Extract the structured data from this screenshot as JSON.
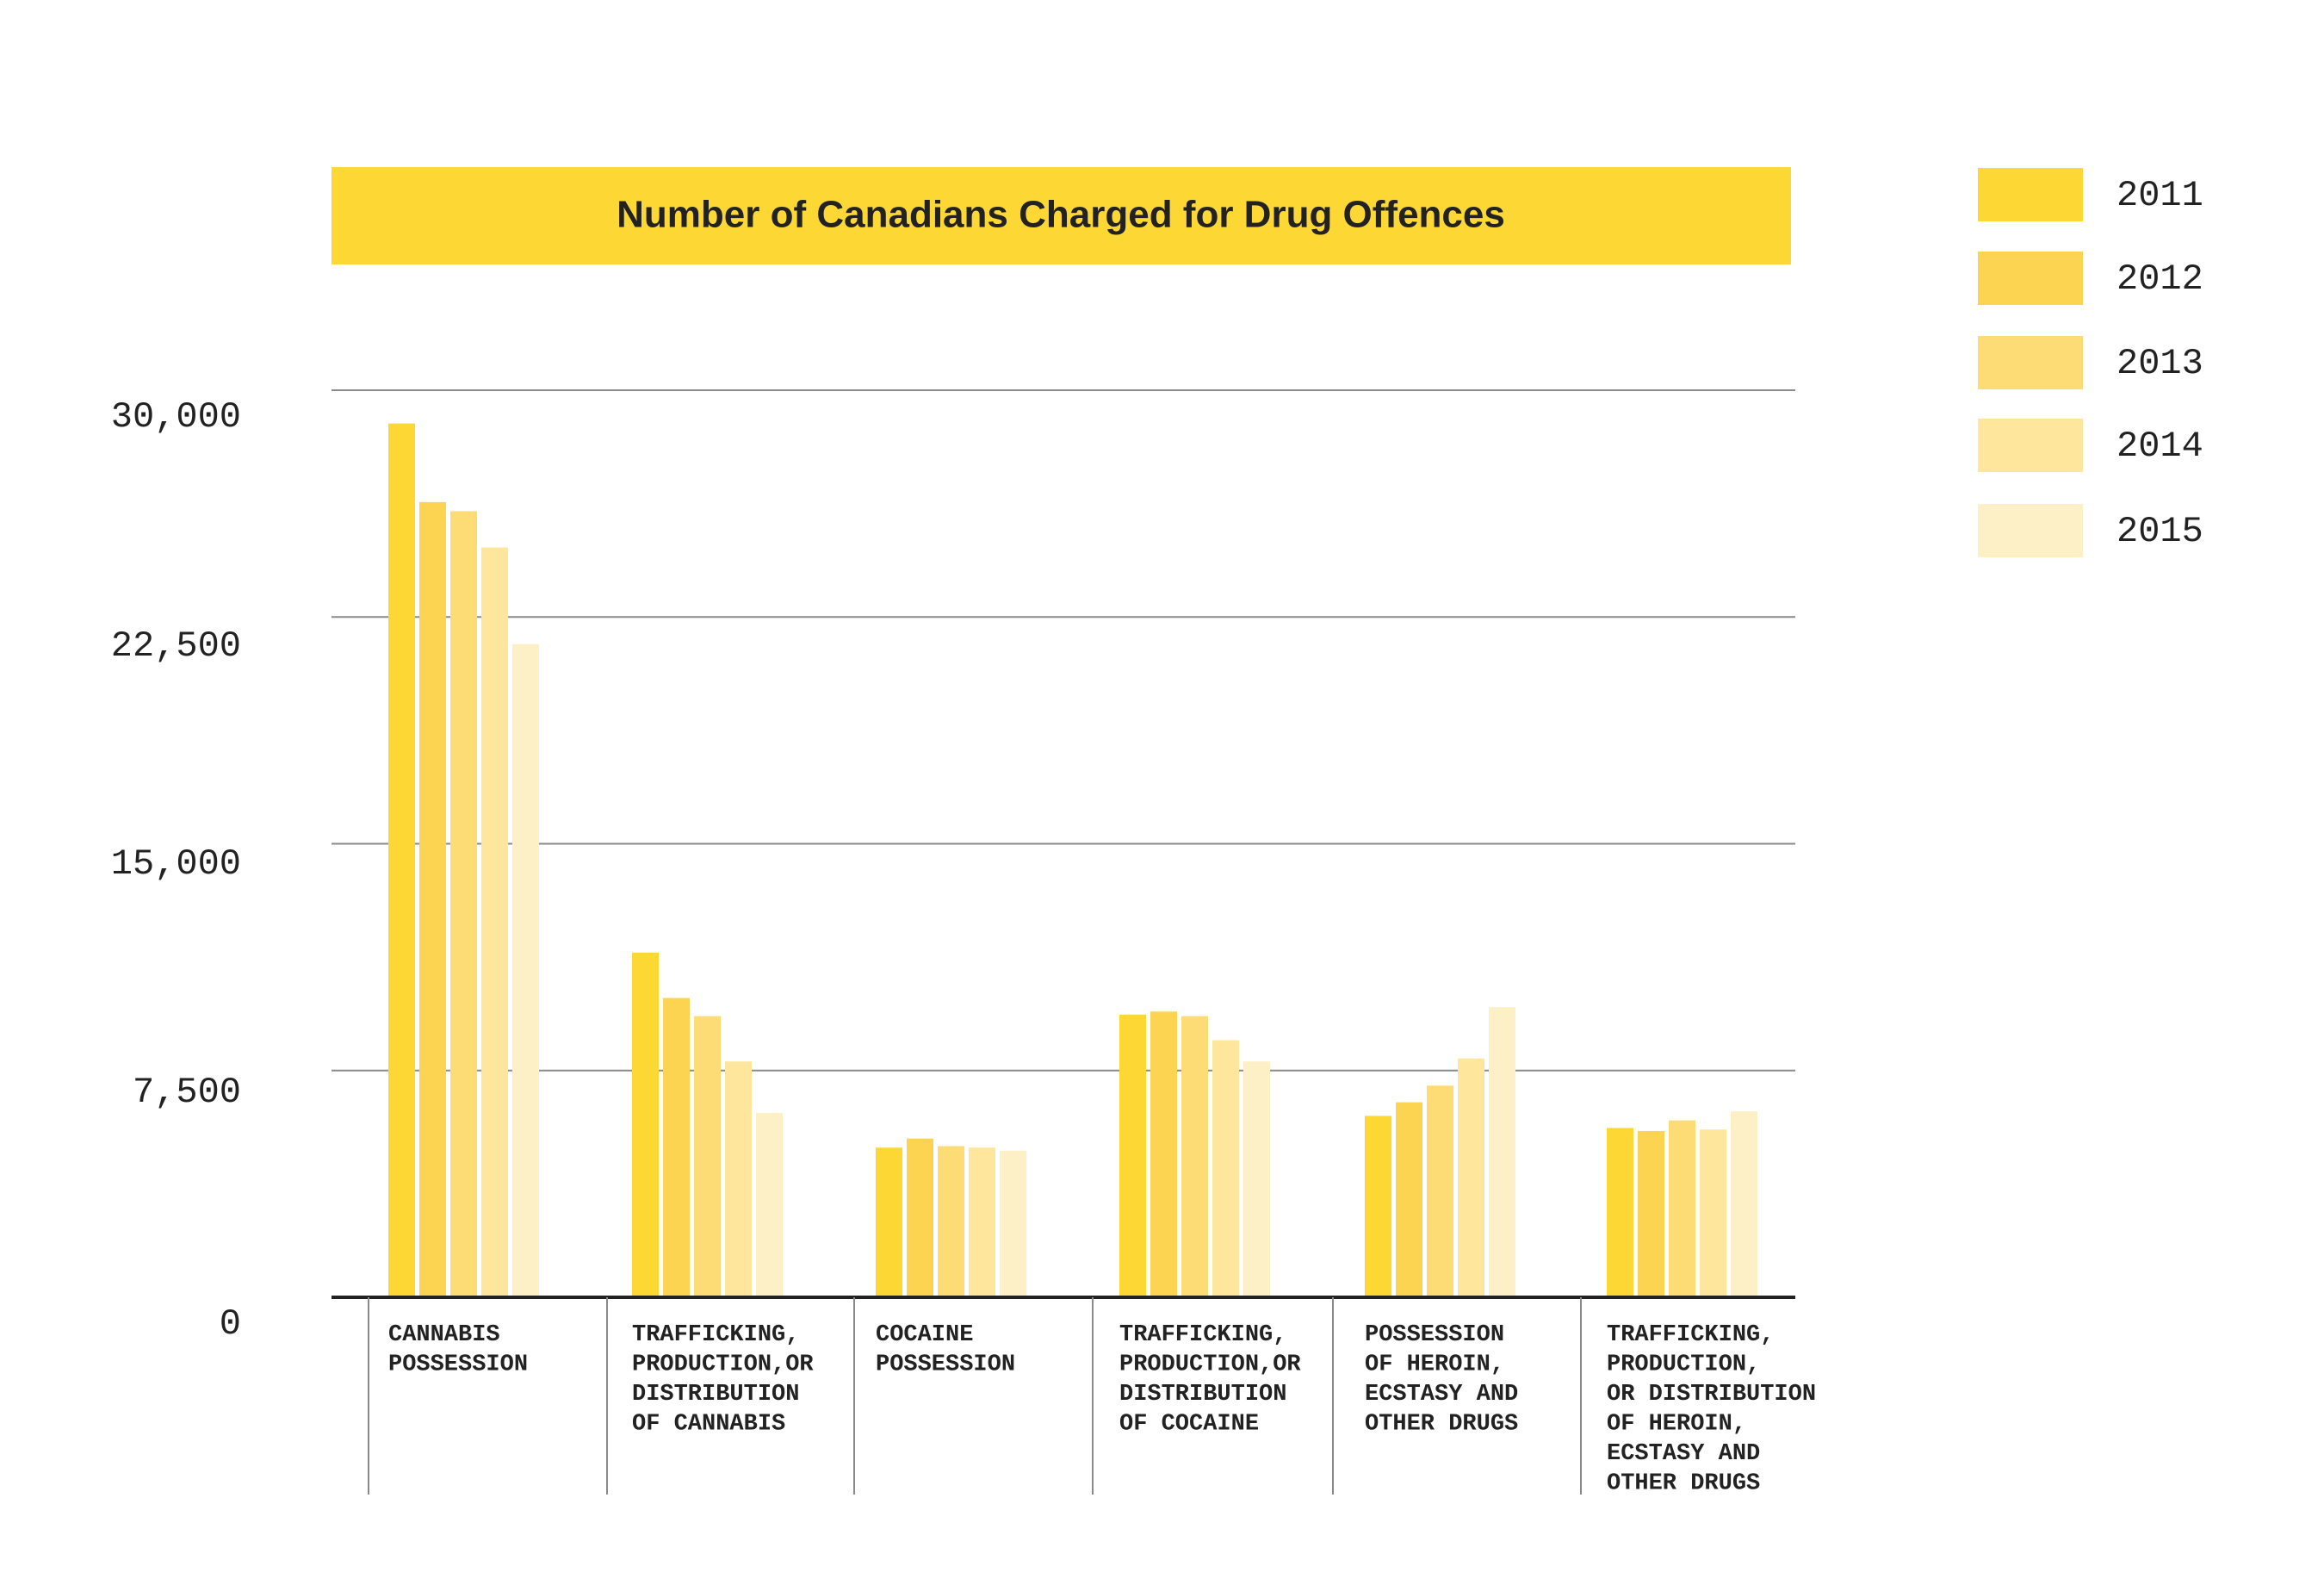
{
  "chart_data": {
    "type": "bar",
    "title": "Number of Canadians Charged for Drug Offences",
    "xlabel": "",
    "ylabel": "",
    "ylim": [
      0,
      30000
    ],
    "yticks": [
      {
        "value": 0,
        "label": "0"
      },
      {
        "value": 7500,
        "label": "7,500"
      },
      {
        "value": 15000,
        "label": "15,000"
      },
      {
        "value": 22500,
        "label": "22,500"
      },
      {
        "value": 30000,
        "label": "30,000"
      }
    ],
    "grid": true,
    "legend_position": "right",
    "categories": [
      {
        "name": "CANNABIS POSSESSION",
        "lines": [
          "CANNABIS",
          "POSSESSION"
        ]
      },
      {
        "name": "TRAFFICKING, PRODUCTION,OR DISTRIBUTION OF CANNABIS",
        "lines": [
          "TRAFFICKING,",
          "PRODUCTION,OR",
          "DISTRIBUTION",
          "OF CANNABIS"
        ]
      },
      {
        "name": "COCAINE POSSESSION",
        "lines": [
          "COCAINE",
          "POSSESSION"
        ]
      },
      {
        "name": "TRAFFICKING, PRODUCTION,OR DISTRIBUTION OF COCAINE",
        "lines": [
          "TRAFFICKING,",
          "PRODUCTION,OR",
          "DISTRIBUTION",
          "OF COCAINE"
        ]
      },
      {
        "name": "POSSESSION OF HEROIN, ECSTASY AND OTHER DRUGS",
        "lines": [
          "POSSESSION",
          "OF HEROIN,",
          "ECSTASY AND",
          "OTHER DRUGS"
        ]
      },
      {
        "name": "TRAFFICKING, PRODUCTION, OR DISTRIBUTION OF HEROIN, ECSTASY AND OTHER DRUGS",
        "lines": [
          "TRAFFICKING,",
          "PRODUCTION,",
          "OR DISTRIBUTION",
          "OF HEROIN,",
          "ECSTASY AND",
          "OTHER DRUGS"
        ]
      }
    ],
    "series": [
      {
        "name": "2011",
        "color": "#FDD835",
        "values": [
          28900,
          11400,
          4950,
          9350,
          6000,
          5600
        ]
      },
      {
        "name": "2012",
        "color": "#FDD452",
        "values": [
          26300,
          9900,
          5250,
          9450,
          6450,
          5500
        ]
      },
      {
        "name": "2013",
        "color": "#FEDC75",
        "values": [
          26000,
          9300,
          5000,
          9300,
          7000,
          5850
        ]
      },
      {
        "name": "2014",
        "color": "#FEE69D",
        "values": [
          24800,
          7800,
          4950,
          8500,
          7900,
          5550
        ]
      },
      {
        "name": "2015",
        "color": "#FEF0C6",
        "values": [
          21600,
          6100,
          4850,
          7800,
          9600,
          6150
        ]
      }
    ],
    "colors": {
      "title_band": "#FDD835",
      "grid": "#8a8a8a",
      "baseline": "#222222",
      "text": "#222222"
    }
  }
}
